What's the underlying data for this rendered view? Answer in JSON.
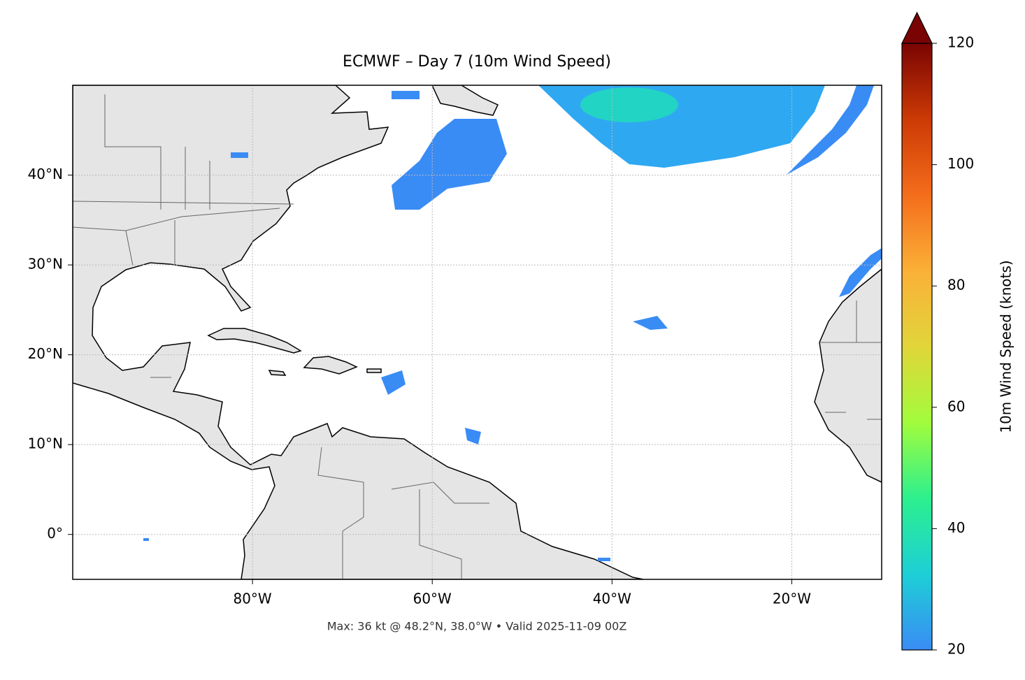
{
  "chart_data": {
    "type": "map",
    "title": "ECMWF – Day 7 (10m Wind Speed)",
    "annotation": "Max: 36 kt @ 48.2°N, 38.0°W • Valid 2025-11-09 00Z",
    "xlim": [
      -100,
      -10
    ],
    "ylim": [
      -5,
      50
    ],
    "xticks": [
      {
        "value": -80,
        "label": "80°W"
      },
      {
        "value": -60,
        "label": "60°W"
      },
      {
        "value": -40,
        "label": "40°W"
      },
      {
        "value": -20,
        "label": "20°W"
      }
    ],
    "yticks": [
      {
        "value": 0,
        "label": "0°"
      },
      {
        "value": 10,
        "label": "10°N"
      },
      {
        "value": 20,
        "label": "20°N"
      },
      {
        "value": 30,
        "label": "30°N"
      },
      {
        "value": 40,
        "label": "40°N"
      }
    ],
    "grid": true,
    "colorbar": {
      "label": "10m Wind Speed (knots)",
      "lim": [
        20,
        120
      ],
      "ticks": [
        20,
        40,
        60,
        80,
        100,
        120
      ],
      "colors": [
        "#3a8cf5",
        "#1dcfd6",
        "#2cf08e",
        "#a2fc3c",
        "#e1d53a",
        "#fbb038",
        "#f46d1b",
        "#cc3a05",
        "#7a0403"
      ]
    }
  }
}
